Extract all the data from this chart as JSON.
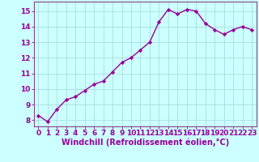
{
  "x": [
    0,
    1,
    2,
    3,
    4,
    5,
    6,
    7,
    8,
    9,
    10,
    11,
    12,
    13,
    14,
    15,
    16,
    17,
    18,
    19,
    20,
    21,
    22,
    23
  ],
  "y": [
    8.3,
    7.9,
    8.7,
    9.3,
    9.5,
    9.9,
    10.3,
    10.5,
    11.1,
    11.7,
    12.0,
    12.5,
    13.0,
    14.3,
    15.1,
    14.8,
    15.1,
    15.0,
    14.2,
    13.8,
    13.5,
    13.8,
    14.0,
    13.8
  ],
  "line_color": "#990099",
  "marker": "D",
  "marker_size": 2.2,
  "xlabel": "Windchill (Refroidissement éolien,°C)",
  "xlabel_fontsize": 7,
  "ylim_min": 7.6,
  "ylim_max": 15.6,
  "xlim_min": -0.5,
  "xlim_max": 23.5,
  "yticks": [
    8,
    9,
    10,
    11,
    12,
    13,
    14,
    15
  ],
  "xticks": [
    0,
    1,
    2,
    3,
    4,
    5,
    6,
    7,
    8,
    9,
    10,
    11,
    12,
    13,
    14,
    15,
    16,
    17,
    18,
    19,
    20,
    21,
    22,
    23
  ],
  "bg_color": "#ccffff",
  "grid_color": "#aadddd",
  "tick_fontsize": 6.5,
  "line_width": 1.0,
  "spine_color": "#884488"
}
